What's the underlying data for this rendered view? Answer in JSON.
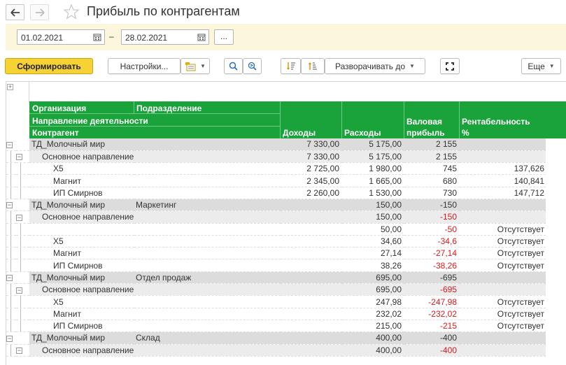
{
  "window": {
    "title": "Прибыль по контрагентам"
  },
  "period": {
    "start": "01.02.2021",
    "separator": "–",
    "end": "28.02.2021",
    "more_label": "..."
  },
  "toolbar": {
    "generate_label": "Сформировать",
    "settings_label": "Настройки...",
    "expand_to_label": "Разворачивать до",
    "more_label": "Еще"
  },
  "header": {
    "organization": "Организация",
    "division": "Подразделение",
    "direction": "Направление деятельности",
    "counterparty": "Контрагент",
    "income": "Доходы",
    "expenses": "Расходы",
    "gross_profit_line1": "Валовая",
    "gross_profit_line2": "прибыль",
    "profitability_line1": "Рентабельность",
    "profitability_line2": "%"
  },
  "rows": [
    {
      "level": 0,
      "name": "ТД_Молочный мир",
      "division": "",
      "income": "7 330,00",
      "expenses": "5 175,00",
      "profit": "2 155",
      "profit_negative": false,
      "profitability": ""
    },
    {
      "level": 1,
      "name": "Основное направление",
      "division": "",
      "income": "7 330,00",
      "expenses": "5 175,00",
      "profit": "2 155",
      "profit_negative": false,
      "profitability": ""
    },
    {
      "level": 2,
      "name": "Х5",
      "division": "",
      "income": "2 725,00",
      "expenses": "1 980,00",
      "profit": "745",
      "profit_negative": false,
      "profitability": "137,626"
    },
    {
      "level": 2,
      "name": "Магнит",
      "division": "",
      "income": "2 345,00",
      "expenses": "1 665,00",
      "profit": "680",
      "profit_negative": false,
      "profitability": "140,841"
    },
    {
      "level": 2,
      "name": "ИП Смирнов",
      "division": "",
      "income": "2 260,00",
      "expenses": "1 530,00",
      "profit": "730",
      "profit_negative": false,
      "profitability": "147,712"
    },
    {
      "level": 0,
      "name": "ТД_Молочный мир",
      "division": "Маркетинг",
      "income": "",
      "expenses": "150,00",
      "profit": "-150",
      "profit_negative": false,
      "profitability": ""
    },
    {
      "level": 1,
      "name": "Основное направление",
      "division": "",
      "income": "",
      "expenses": "150,00",
      "profit": "-150",
      "profit_negative": true,
      "profitability": ""
    },
    {
      "level": 2,
      "name": "",
      "division": "",
      "income": "",
      "expenses": "50,00",
      "profit": "-50",
      "profit_negative": true,
      "profitability": "Отсутствует"
    },
    {
      "level": 2,
      "name": "Х5",
      "division": "",
      "income": "",
      "expenses": "34,60",
      "profit": "-34,6",
      "profit_negative": true,
      "profitability": "Отсутствует"
    },
    {
      "level": 2,
      "name": "Магнит",
      "division": "",
      "income": "",
      "expenses": "27,14",
      "profit": "-27,14",
      "profit_negative": true,
      "profitability": "Отсутствует"
    },
    {
      "level": 2,
      "name": "ИП Смирнов",
      "division": "",
      "income": "",
      "expenses": "38,26",
      "profit": "-38,26",
      "profit_negative": true,
      "profitability": "Отсутствует"
    },
    {
      "level": 0,
      "name": "ТД_Молочный мир",
      "division": "Отдел продаж",
      "income": "",
      "expenses": "695,00",
      "profit": "-695",
      "profit_negative": false,
      "profitability": ""
    },
    {
      "level": 1,
      "name": "Основное направление",
      "division": "",
      "income": "",
      "expenses": "695,00",
      "profit": "-695",
      "profit_negative": true,
      "profitability": ""
    },
    {
      "level": 2,
      "name": "Х5",
      "division": "",
      "income": "",
      "expenses": "247,98",
      "profit": "-247,98",
      "profit_negative": true,
      "profitability": "Отсутствует"
    },
    {
      "level": 2,
      "name": "Магнит",
      "division": "",
      "income": "",
      "expenses": "232,02",
      "profit": "-232,02",
      "profit_negative": true,
      "profitability": "Отсутствует"
    },
    {
      "level": 2,
      "name": "ИП Смирнов",
      "division": "",
      "income": "",
      "expenses": "215,00",
      "profit": "-215",
      "profit_negative": true,
      "profitability": "Отсутствует"
    },
    {
      "level": 0,
      "name": "ТД_Молочный мир",
      "division": "Склад",
      "income": "",
      "expenses": "400,00",
      "profit": "-400",
      "profit_negative": false,
      "profitability": ""
    },
    {
      "level": 1,
      "name": "Основное направление",
      "division": "",
      "income": "",
      "expenses": "400,00",
      "profit": "-400",
      "profit_negative": true,
      "profitability": ""
    }
  ],
  "colors": {
    "header_green": "#1aa33a",
    "primary_yellow": "#f6d234",
    "negative_red": "#e0181b",
    "period_bar": "#fcf6dc",
    "group_level0": "#dcdcdc",
    "group_level1": "#ececec"
  }
}
